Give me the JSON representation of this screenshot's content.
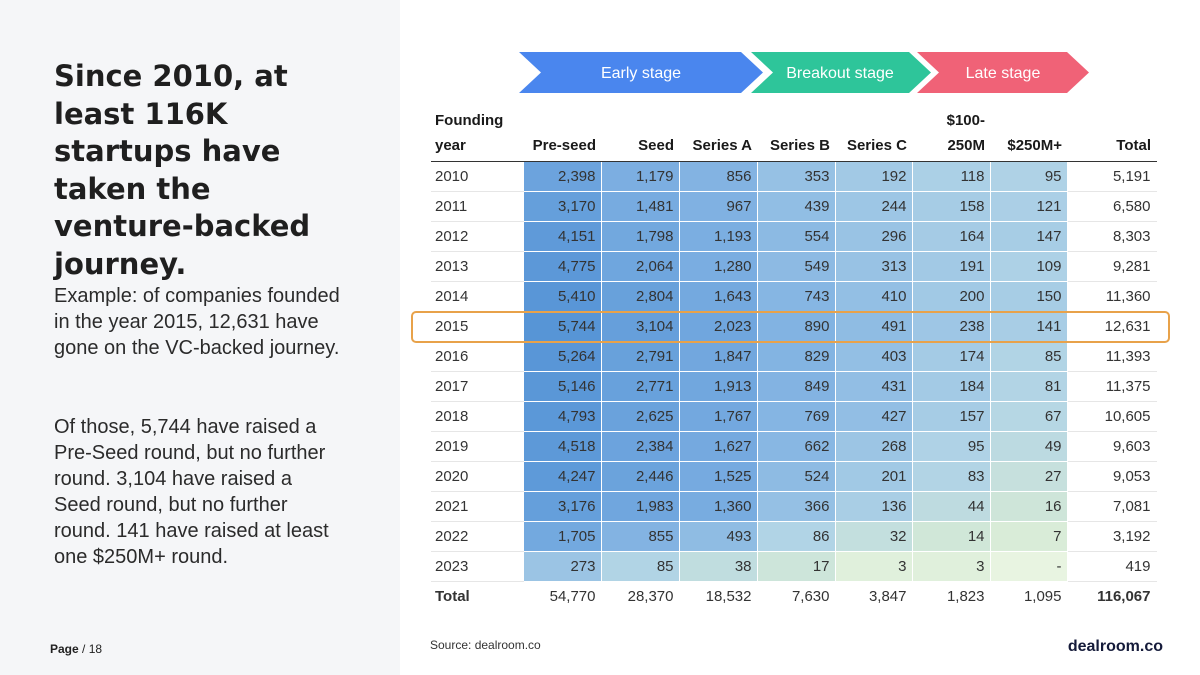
{
  "headline": "Since 2010, at least 116K startups have taken the venture-backed journey.",
  "body": {
    "p1": "Example: of companies founded in the year 2015, 12,631 have gone on the VC-backed journey.",
    "p2": "Of those, 5,744 have raised a Pre-Seed round, but no further round. 3,104 have raised a Seed round, but no further round. 141 have raised at least one $250M+ round."
  },
  "footer": {
    "page_bold": "Page",
    "page_rest": "/ 18",
    "source": "Source: dealroom.co",
    "brand": "dealroom.co"
  },
  "stages": [
    {
      "label": "Early stage",
      "color": "#4a86ee"
    },
    {
      "label": "Breakout stage",
      "color": "#2ec59a"
    },
    {
      "label": "Late stage",
      "color": "#f06277"
    }
  ],
  "highlight_year": "2015",
  "chart_data": {
    "type": "table",
    "columns": [
      "Founding year",
      "Pre-seed",
      "Seed",
      "Series A",
      "Series B",
      "Series C",
      "$100-250M",
      "$250M+",
      "Total"
    ],
    "rows": [
      {
        "year": "2010",
        "values": [
          "2,398",
          "1,179",
          "856",
          "353",
          "192",
          "118",
          "95"
        ],
        "total": "5,191"
      },
      {
        "year": "2011",
        "values": [
          "3,170",
          "1,481",
          "967",
          "439",
          "244",
          "158",
          "121"
        ],
        "total": "6,580"
      },
      {
        "year": "2012",
        "values": [
          "4,151",
          "1,798",
          "1,193",
          "554",
          "296",
          "164",
          "147"
        ],
        "total": "8,303"
      },
      {
        "year": "2013",
        "values": [
          "4,775",
          "2,064",
          "1,280",
          "549",
          "313",
          "191",
          "109"
        ],
        "total": "9,281"
      },
      {
        "year": "2014",
        "values": [
          "5,410",
          "2,804",
          "1,643",
          "743",
          "410",
          "200",
          "150"
        ],
        "total": "11,360"
      },
      {
        "year": "2015",
        "values": [
          "5,744",
          "3,104",
          "2,023",
          "890",
          "491",
          "238",
          "141"
        ],
        "total": "12,631"
      },
      {
        "year": "2016",
        "values": [
          "5,264",
          "2,791",
          "1,847",
          "829",
          "403",
          "174",
          "85"
        ],
        "total": "11,393"
      },
      {
        "year": "2017",
        "values": [
          "5,146",
          "2,771",
          "1,913",
          "849",
          "431",
          "184",
          "81"
        ],
        "total": "11,375"
      },
      {
        "year": "2018",
        "values": [
          "4,793",
          "2,625",
          "1,767",
          "769",
          "427",
          "157",
          "67"
        ],
        "total": "10,605"
      },
      {
        "year": "2019",
        "values": [
          "4,518",
          "2,384",
          "1,627",
          "662",
          "268",
          "95",
          "49"
        ],
        "total": "9,603"
      },
      {
        "year": "2020",
        "values": [
          "4,247",
          "2,446",
          "1,525",
          "524",
          "201",
          "83",
          "27"
        ],
        "total": "9,053"
      },
      {
        "year": "2021",
        "values": [
          "3,176",
          "1,983",
          "1,360",
          "366",
          "136",
          "44",
          "16"
        ],
        "total": "7,081"
      },
      {
        "year": "2022",
        "values": [
          "1,705",
          "855",
          "493",
          "86",
          "32",
          "14",
          "7"
        ],
        "total": "3,192"
      },
      {
        "year": "2023",
        "values": [
          "273",
          "85",
          "38",
          "17",
          "3",
          "3",
          "-"
        ],
        "total": "419"
      }
    ],
    "totals": {
      "label": "Total",
      "values": [
        "54,770",
        "28,370",
        "18,532",
        "7,630",
        "3,847",
        "1,823",
        "1,095"
      ],
      "grand": "116,067"
    }
  }
}
